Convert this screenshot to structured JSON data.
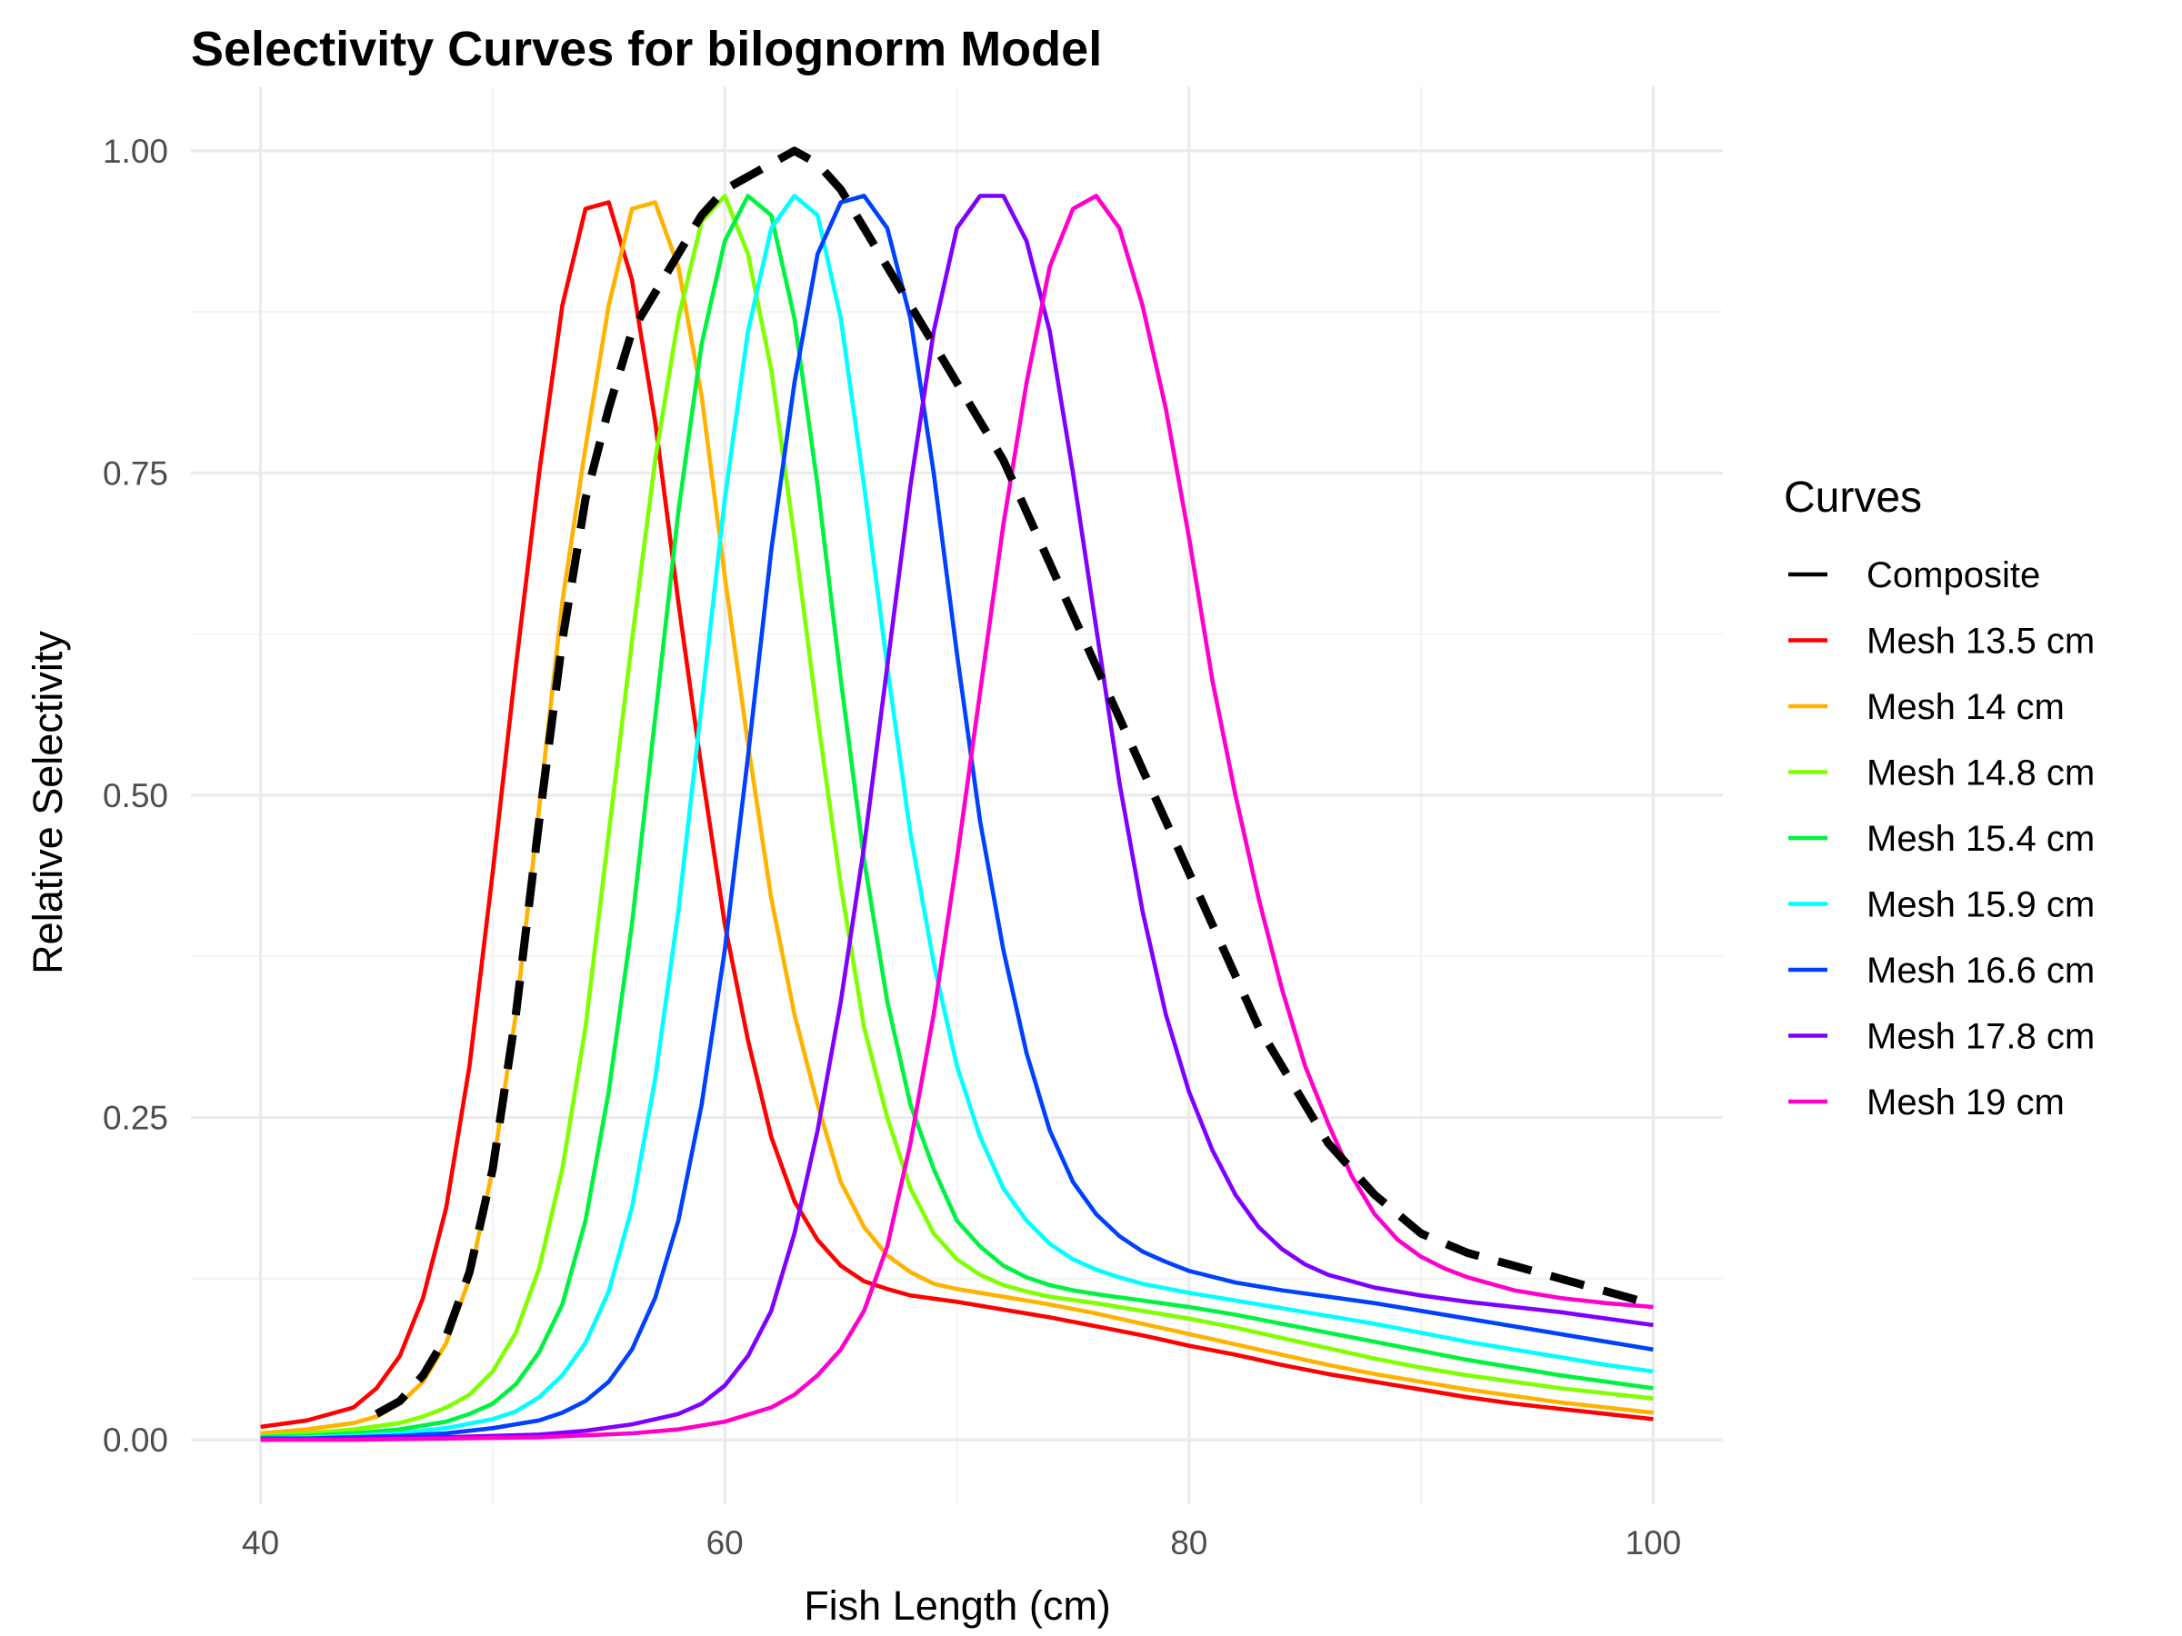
{
  "chart_data": {
    "type": "line",
    "title": "Selectivity Curves for bilognorm Model",
    "xlabel": "Fish Length (cm)",
    "ylabel": "Relative Selectivity",
    "xlim": [
      37,
      103
    ],
    "ylim": [
      -0.05,
      1.05
    ],
    "xticks": [
      40,
      60,
      80,
      100
    ],
    "xtick_labels": [
      "40",
      "60",
      "80",
      "100"
    ],
    "xminor": [
      50,
      70,
      90
    ],
    "yticks": [
      0,
      0.25,
      0.5,
      0.75,
      1.0
    ],
    "ytick_labels": [
      "0.00",
      "0.25",
      "0.50",
      "0.75",
      "1.00"
    ],
    "yminor": [
      0.125,
      0.375,
      0.625,
      0.875
    ],
    "grid": true,
    "legend": {
      "title": "Curves",
      "position": "right"
    },
    "series": [
      {
        "name": "Composite",
        "color": "#000000",
        "dashed": true,
        "legend_dashed": false,
        "x": [
          45,
          46,
          47,
          48,
          49,
          50,
          51,
          52,
          53,
          54,
          55,
          56,
          57,
          58,
          59,
          60,
          61,
          62,
          63,
          64,
          65,
          66,
          67,
          68,
          69,
          70,
          71,
          72,
          73,
          74,
          75,
          76,
          77,
          78,
          79,
          80,
          81,
          82,
          83,
          84,
          85,
          86,
          87,
          88,
          89,
          90,
          92,
          94,
          96,
          98,
          100
        ],
        "y": [
          0.02,
          0.03,
          0.05,
          0.08,
          0.13,
          0.21,
          0.33,
          0.48,
          0.62,
          0.73,
          0.8,
          0.86,
          0.89,
          0.92,
          0.95,
          0.97,
          0.98,
          0.99,
          1.0,
          0.99,
          0.97,
          0.94,
          0.91,
          0.88,
          0.85,
          0.82,
          0.79,
          0.76,
          0.72,
          0.68,
          0.64,
          0.6,
          0.56,
          0.52,
          0.48,
          0.44,
          0.4,
          0.36,
          0.32,
          0.29,
          0.26,
          0.23,
          0.21,
          0.19,
          0.175,
          0.16,
          0.145,
          0.135,
          0.125,
          0.115,
          0.105
        ]
      },
      {
        "name": "Mesh 13.5 cm",
        "color": "#ff0000",
        "x": [
          40,
          42,
          44,
          45,
          46,
          47,
          48,
          49,
          50,
          51,
          52,
          53,
          54,
          55,
          56,
          57,
          58,
          59,
          60,
          61,
          62,
          63,
          64,
          65,
          66,
          67,
          68,
          70,
          72,
          74,
          76,
          78,
          80,
          82,
          84,
          86,
          88,
          90,
          92,
          94,
          96,
          98,
          100
        ],
        "y": [
          0.01,
          0.015,
          0.025,
          0.04,
          0.065,
          0.11,
          0.18,
          0.29,
          0.44,
          0.6,
          0.75,
          0.88,
          0.955,
          0.96,
          0.9,
          0.79,
          0.65,
          0.52,
          0.4,
          0.31,
          0.235,
          0.185,
          0.155,
          0.135,
          0.123,
          0.117,
          0.112,
          0.107,
          0.101,
          0.095,
          0.088,
          0.081,
          0.073,
          0.066,
          0.058,
          0.051,
          0.045,
          0.039,
          0.033,
          0.028,
          0.024,
          0.02,
          0.016
        ]
      },
      {
        "name": "Mesh 14 cm",
        "color": "#ffb300",
        "x": [
          40,
          42,
          44,
          45,
          46,
          47,
          48,
          49,
          50,
          51,
          52,
          53,
          54,
          55,
          56,
          57,
          58,
          59,
          60,
          61,
          62,
          63,
          64,
          65,
          66,
          67,
          68,
          69,
          70,
          72,
          74,
          76,
          78,
          80,
          82,
          84,
          86,
          88,
          90,
          92,
          94,
          96,
          98,
          100
        ],
        "y": [
          0.005,
          0.008,
          0.013,
          0.018,
          0.028,
          0.045,
          0.075,
          0.125,
          0.21,
          0.33,
          0.49,
          0.65,
          0.77,
          0.88,
          0.955,
          0.96,
          0.91,
          0.81,
          0.67,
          0.54,
          0.42,
          0.33,
          0.26,
          0.2,
          0.165,
          0.143,
          0.13,
          0.121,
          0.117,
          0.111,
          0.105,
          0.098,
          0.09,
          0.082,
          0.074,
          0.066,
          0.058,
          0.051,
          0.045,
          0.039,
          0.034,
          0.029,
          0.025,
          0.021
        ]
      },
      {
        "name": "Mesh 14.8 cm",
        "color": "#7fff00",
        "x": [
          40,
          42,
          44,
          46,
          47,
          48,
          49,
          50,
          51,
          52,
          53,
          54,
          55,
          56,
          57,
          58,
          59,
          60,
          61,
          62,
          63,
          64,
          65,
          66,
          67,
          68,
          69,
          70,
          71,
          72,
          73,
          74,
          76,
          78,
          80,
          82,
          84,
          86,
          88,
          90,
          92,
          94,
          96,
          98,
          100
        ],
        "y": [
          0.003,
          0.005,
          0.008,
          0.013,
          0.018,
          0.025,
          0.035,
          0.053,
          0.083,
          0.133,
          0.21,
          0.32,
          0.47,
          0.62,
          0.76,
          0.87,
          0.945,
          0.965,
          0.92,
          0.83,
          0.7,
          0.56,
          0.43,
          0.32,
          0.25,
          0.195,
          0.16,
          0.14,
          0.128,
          0.12,
          0.115,
          0.111,
          0.106,
          0.1,
          0.094,
          0.087,
          0.079,
          0.071,
          0.063,
          0.056,
          0.05,
          0.045,
          0.04,
          0.036,
          0.032
        ]
      },
      {
        "name": "Mesh 15.4 cm",
        "color": "#00f241",
        "x": [
          40,
          42,
          44,
          46,
          48,
          49,
          50,
          51,
          52,
          53,
          54,
          55,
          56,
          57,
          58,
          59,
          60,
          61,
          62,
          63,
          64,
          65,
          66,
          67,
          68,
          69,
          70,
          71,
          72,
          73,
          74,
          75,
          76,
          78,
          80,
          82,
          84,
          86,
          88,
          90,
          92,
          94,
          96,
          98,
          100
        ],
        "y": [
          0.002,
          0.003,
          0.005,
          0.008,
          0.014,
          0.02,
          0.028,
          0.043,
          0.068,
          0.105,
          0.17,
          0.27,
          0.4,
          0.56,
          0.72,
          0.85,
          0.93,
          0.965,
          0.95,
          0.87,
          0.74,
          0.59,
          0.45,
          0.34,
          0.26,
          0.21,
          0.17,
          0.15,
          0.135,
          0.126,
          0.12,
          0.116,
          0.113,
          0.108,
          0.103,
          0.097,
          0.09,
          0.083,
          0.076,
          0.069,
          0.062,
          0.056,
          0.05,
          0.045,
          0.04
        ]
      },
      {
        "name": "Mesh 15.9 cm",
        "color": "#00ffff",
        "x": [
          40,
          42,
          44,
          46,
          48,
          50,
          51,
          52,
          53,
          54,
          55,
          56,
          57,
          58,
          59,
          60,
          61,
          62,
          63,
          64,
          65,
          66,
          67,
          68,
          69,
          70,
          71,
          72,
          73,
          74,
          75,
          76,
          77,
          78,
          80,
          82,
          84,
          86,
          88,
          90,
          92,
          94,
          96,
          98,
          100
        ],
        "y": [
          0.001,
          0.002,
          0.003,
          0.005,
          0.009,
          0.016,
          0.022,
          0.033,
          0.05,
          0.075,
          0.115,
          0.18,
          0.28,
          0.41,
          0.57,
          0.73,
          0.86,
          0.94,
          0.965,
          0.95,
          0.87,
          0.74,
          0.6,
          0.47,
          0.37,
          0.29,
          0.235,
          0.195,
          0.17,
          0.152,
          0.14,
          0.132,
          0.126,
          0.121,
          0.114,
          0.108,
          0.102,
          0.096,
          0.09,
          0.083,
          0.076,
          0.07,
          0.064,
          0.058,
          0.053
        ]
      },
      {
        "name": "Mesh 16.6 cm",
        "color": "#0040ff",
        "x": [
          40,
          42,
          44,
          46,
          48,
          50,
          52,
          53,
          54,
          55,
          56,
          57,
          58,
          59,
          60,
          61,
          62,
          63,
          64,
          65,
          66,
          67,
          68,
          69,
          70,
          71,
          72,
          73,
          74,
          75,
          76,
          77,
          78,
          79,
          80,
          82,
          84,
          86,
          88,
          90,
          92,
          94,
          96,
          98,
          100
        ],
        "y": [
          0.001,
          0.001,
          0.002,
          0.003,
          0.005,
          0.009,
          0.015,
          0.021,
          0.03,
          0.045,
          0.07,
          0.11,
          0.17,
          0.26,
          0.38,
          0.53,
          0.69,
          0.82,
          0.92,
          0.96,
          0.965,
          0.94,
          0.87,
          0.75,
          0.61,
          0.48,
          0.38,
          0.3,
          0.24,
          0.2,
          0.175,
          0.158,
          0.146,
          0.138,
          0.131,
          0.122,
          0.116,
          0.111,
          0.106,
          0.1,
          0.094,
          0.088,
          0.082,
          0.076,
          0.07
        ]
      },
      {
        "name": "Mesh 17.8 cm",
        "color": "#8000ff",
        "x": [
          40,
          44,
          48,
          52,
          54,
          56,
          58,
          59,
          60,
          61,
          62,
          63,
          64,
          65,
          66,
          67,
          68,
          69,
          70,
          71,
          72,
          73,
          74,
          75,
          76,
          77,
          78,
          79,
          80,
          81,
          82,
          83,
          84,
          85,
          86,
          88,
          90,
          92,
          94,
          96,
          98,
          100
        ],
        "y": [
          0.0,
          0.001,
          0.002,
          0.004,
          0.007,
          0.012,
          0.02,
          0.028,
          0.042,
          0.065,
          0.1,
          0.16,
          0.24,
          0.34,
          0.46,
          0.6,
          0.74,
          0.86,
          0.94,
          0.965,
          0.965,
          0.93,
          0.86,
          0.75,
          0.63,
          0.51,
          0.41,
          0.33,
          0.27,
          0.225,
          0.19,
          0.165,
          0.148,
          0.136,
          0.128,
          0.118,
          0.112,
          0.107,
          0.103,
          0.099,
          0.094,
          0.089
        ]
      },
      {
        "name": "Mesh 19 cm",
        "color": "#ff00cc",
        "x": [
          40,
          44,
          48,
          52,
          56,
          58,
          60,
          62,
          63,
          64,
          65,
          66,
          67,
          68,
          69,
          70,
          71,
          72,
          73,
          74,
          75,
          76,
          77,
          78,
          79,
          80,
          81,
          82,
          83,
          84,
          85,
          86,
          87,
          88,
          89,
          90,
          91,
          92,
          94,
          96,
          98,
          100
        ],
        "y": [
          0.0,
          0.0,
          0.001,
          0.002,
          0.005,
          0.008,
          0.014,
          0.025,
          0.035,
          0.05,
          0.07,
          0.1,
          0.15,
          0.23,
          0.33,
          0.45,
          0.58,
          0.71,
          0.82,
          0.91,
          0.955,
          0.965,
          0.94,
          0.88,
          0.8,
          0.7,
          0.59,
          0.5,
          0.42,
          0.35,
          0.29,
          0.245,
          0.205,
          0.175,
          0.155,
          0.142,
          0.133,
          0.126,
          0.116,
          0.11,
          0.106,
          0.103
        ]
      }
    ]
  }
}
